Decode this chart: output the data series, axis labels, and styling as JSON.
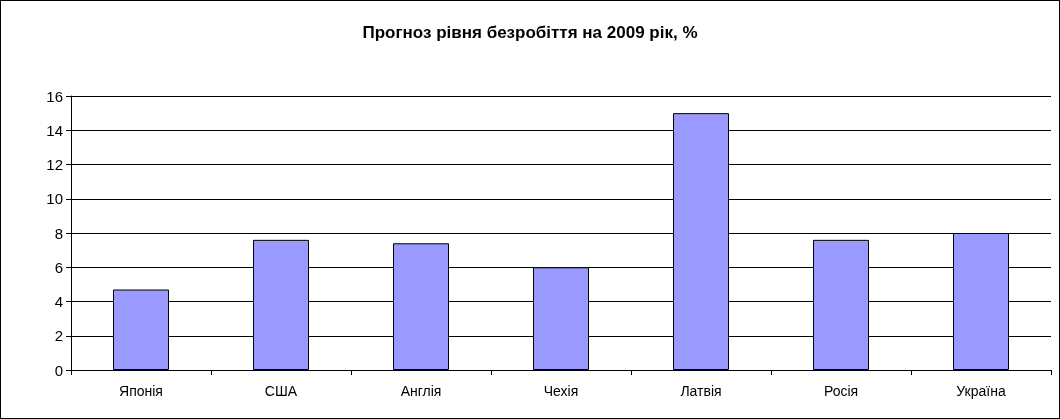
{
  "chart_data": {
    "type": "bar",
    "title": "Прогноз рівня безробіття на 2009 рік, %",
    "categories": [
      "Японія",
      "США",
      "Англія",
      "Чехія",
      "Латвія",
      "Росія",
      "Україна"
    ],
    "values": [
      4.7,
      7.6,
      7.4,
      6.0,
      15.0,
      7.6,
      8.0
    ],
    "color": "#9999ff",
    "ylim": [
      0,
      16
    ],
    "yticks": [
      0,
      2,
      4,
      6,
      8,
      10,
      12,
      14,
      16
    ],
    "grid": "y"
  }
}
